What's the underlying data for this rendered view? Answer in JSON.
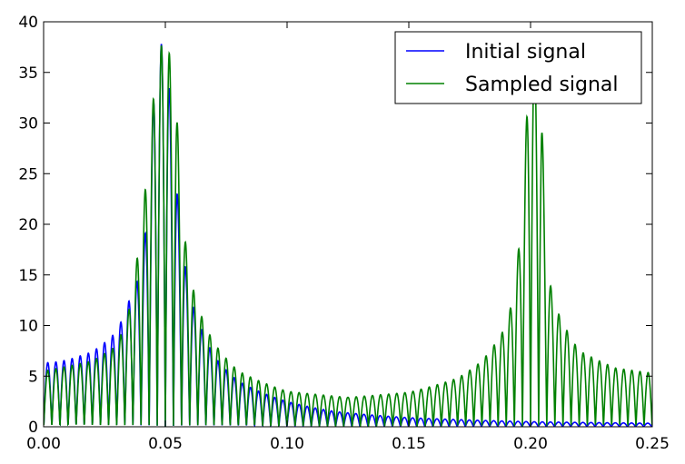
{
  "chart_data": {
    "type": "line",
    "title": "",
    "xlabel": "",
    "ylabel": "",
    "xlim": [
      0.0,
      0.25
    ],
    "ylim": [
      0,
      40
    ],
    "x_ticks": [
      0.0,
      0.05,
      0.1,
      0.15,
      0.2,
      0.25
    ],
    "x_tick_labels": [
      "0.00",
      "0.05",
      "0.10",
      "0.15",
      "0.20",
      "0.25"
    ],
    "y_ticks": [
      0,
      5,
      10,
      15,
      20,
      25,
      30,
      35,
      40
    ],
    "y_tick_labels": [
      "0",
      "5",
      "10",
      "15",
      "20",
      "25",
      "30",
      "35",
      "40"
    ],
    "grid": false,
    "legend_position": "top-right",
    "series": [
      {
        "name": "Initial signal",
        "color": "#0000ff",
        "peak_frequency": 0.05,
        "peak_envelope_points": [
          [
            0.0,
            6.3
          ],
          [
            0.005,
            6.4
          ],
          [
            0.01,
            6.6
          ],
          [
            0.015,
            7.0
          ],
          [
            0.02,
            7.4
          ],
          [
            0.025,
            8.3
          ],
          [
            0.03,
            9.4
          ],
          [
            0.035,
            12.4
          ],
          [
            0.04,
            15.4
          ],
          [
            0.0425,
            21.0
          ],
          [
            0.0455,
            34.2
          ],
          [
            0.05,
            40.0
          ],
          [
            0.06,
            13.0
          ],
          [
            0.07,
            7.0
          ],
          [
            0.08,
            4.5
          ],
          [
            0.1,
            2.5
          ],
          [
            0.12,
            1.5
          ],
          [
            0.15,
            0.9
          ],
          [
            0.2,
            0.5
          ],
          [
            0.25,
            0.35
          ]
        ]
      },
      {
        "name": "Sampled signal",
        "color": "#008000",
        "peak_frequencies": [
          0.05,
          0.2
        ],
        "peak_envelope_points": [
          [
            0.0,
            5.5
          ],
          [
            0.02,
            6.5
          ],
          [
            0.03,
            8.0
          ],
          [
            0.035,
            11.5
          ],
          [
            0.04,
            19.8
          ],
          [
            0.0455,
            33.8
          ],
          [
            0.05,
            40.0
          ],
          [
            0.0545,
            32.0
          ],
          [
            0.058,
            18.7
          ],
          [
            0.062,
            13.0
          ],
          [
            0.066,
            10.2
          ],
          [
            0.07,
            8.3
          ],
          [
            0.08,
            5.5
          ],
          [
            0.1,
            3.5
          ],
          [
            0.125,
            2.9
          ],
          [
            0.15,
            3.4
          ],
          [
            0.17,
            4.8
          ],
          [
            0.18,
            6.5
          ],
          [
            0.19,
            10.0
          ],
          [
            0.193,
            13.2
          ],
          [
            0.1955,
            18.6
          ],
          [
            0.2,
            40.0
          ],
          [
            0.2045,
            32.0
          ],
          [
            0.207,
            15.5
          ],
          [
            0.21,
            12.0
          ],
          [
            0.22,
            7.5
          ],
          [
            0.235,
            5.8
          ],
          [
            0.25,
            5.3
          ]
        ]
      }
    ]
  }
}
